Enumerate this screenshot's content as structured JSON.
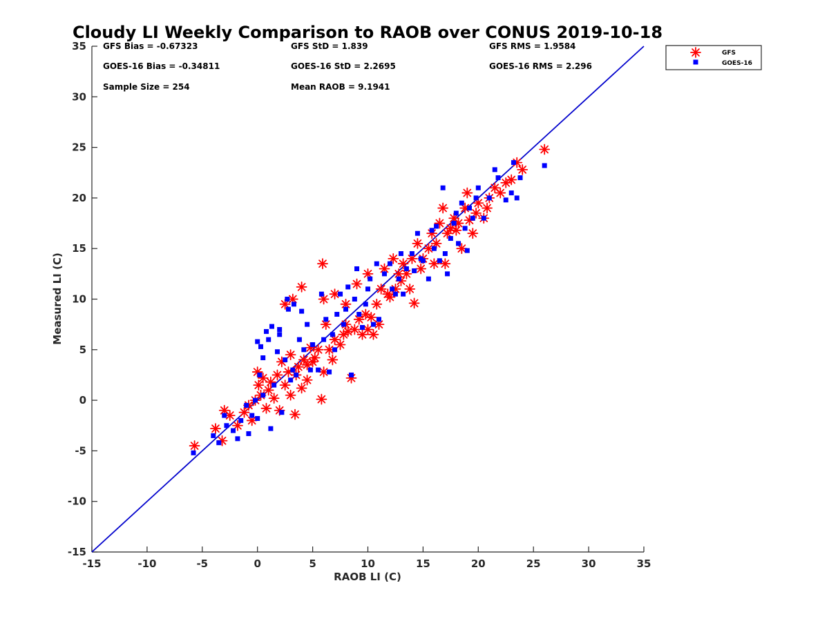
{
  "chart_data": {
    "type": "scatter",
    "title": "Cloudy LI Weekly Comparison to RAOB over CONUS 2019-10-18",
    "xlabel": "RAOB LI (C)",
    "ylabel": "Measured LI (C)",
    "xlim": [
      -15,
      35
    ],
    "ylim": [
      -15,
      35
    ],
    "xticks": [
      "-15",
      "-10",
      "-5",
      "0",
      "5",
      "10",
      "15",
      "20",
      "25",
      "30",
      "35"
    ],
    "yticks": [
      "-15",
      "-10",
      "-5",
      "0",
      "5",
      "10",
      "15",
      "20",
      "25",
      "30",
      "35"
    ],
    "grid": false,
    "legend_position": "outside-top-right",
    "reference_line": {
      "x": [
        -15,
        35
      ],
      "y": [
        -15,
        35
      ],
      "color": "#0000cc"
    },
    "stats": {
      "gfs_bias": "GFS Bias = -0.67323",
      "gfs_std": "GFS StD = 1.839",
      "gfs_rms": "GFS RMS = 1.9584",
      "goes_bias": "GOES-16 Bias = -0.34811",
      "goes_std": "GOES-16 StD = 2.2695",
      "goes_rms": "GOES-16 RMS = 2.296",
      "sample_size": "Sample Size = 254",
      "mean_raob": "Mean RAOB = 9.1941"
    },
    "series": [
      {
        "name": "GFS",
        "marker": "asterisk",
        "color": "#ff0000",
        "points": [
          [
            -5.7,
            -4.5
          ],
          [
            -3.8,
            -2.8
          ],
          [
            -3.2,
            -4.0
          ],
          [
            -3.0,
            -1.0
          ],
          [
            -2.5,
            -1.5
          ],
          [
            -1.8,
            -2.5
          ],
          [
            -1.2,
            -1.2
          ],
          [
            -0.8,
            -0.5
          ],
          [
            -0.5,
            -2.0
          ],
          [
            -0.2,
            0.0
          ],
          [
            0.0,
            2.8
          ],
          [
            0.1,
            1.5
          ],
          [
            0.3,
            0.5
          ],
          [
            0.5,
            2.2
          ],
          [
            0.8,
            -0.8
          ],
          [
            1.0,
            1.0
          ],
          [
            1.2,
            1.8
          ],
          [
            1.5,
            0.2
          ],
          [
            1.8,
            2.5
          ],
          [
            2.0,
            -1.0
          ],
          [
            2.2,
            3.8
          ],
          [
            2.5,
            1.5
          ],
          [
            2.5,
            9.5
          ],
          [
            2.8,
            2.8
          ],
          [
            3.0,
            0.5
          ],
          [
            3.0,
            4.5
          ],
          [
            3.2,
            10.0
          ],
          [
            3.4,
            -1.4
          ],
          [
            3.5,
            2.5
          ],
          [
            3.7,
            3.3
          ],
          [
            4.0,
            1.2
          ],
          [
            4.2,
            4.0
          ],
          [
            4.0,
            11.2
          ],
          [
            4.5,
            2.0
          ],
          [
            4.5,
            3.5
          ],
          [
            4.8,
            5.2
          ],
          [
            5.0,
            3.8
          ],
          [
            5.2,
            4.2
          ],
          [
            5.5,
            5.0
          ],
          [
            5.8,
            0.1
          ],
          [
            5.9,
            13.5
          ],
          [
            6.0,
            2.8
          ],
          [
            6.0,
            10.0
          ],
          [
            6.2,
            7.5
          ],
          [
            6.5,
            5.0
          ],
          [
            6.8,
            4.0
          ],
          [
            7.0,
            6.0
          ],
          [
            7.0,
            10.5
          ],
          [
            7.5,
            5.5
          ],
          [
            7.8,
            6.5
          ],
          [
            8.0,
            7.5
          ],
          [
            8.0,
            9.5
          ],
          [
            8.2,
            6.8
          ],
          [
            8.5,
            2.2
          ],
          [
            8.8,
            7.0
          ],
          [
            9.0,
            11.5
          ],
          [
            9.2,
            8.0
          ],
          [
            9.5,
            6.5
          ],
          [
            9.8,
            8.5
          ],
          [
            10.0,
            7.0
          ],
          [
            10.0,
            12.5
          ],
          [
            10.3,
            8.2
          ],
          [
            10.5,
            6.5
          ],
          [
            10.8,
            9.5
          ],
          [
            11.0,
            7.5
          ],
          [
            11.2,
            11.0
          ],
          [
            11.5,
            13.0
          ],
          [
            11.8,
            10.5
          ],
          [
            12.0,
            10.2
          ],
          [
            12.3,
            14.0
          ],
          [
            12.5,
            11.0
          ],
          [
            12.8,
            12.5
          ],
          [
            13.0,
            11.8
          ],
          [
            13.2,
            13.5
          ],
          [
            13.5,
            12.5
          ],
          [
            13.8,
            11.0
          ],
          [
            14.0,
            14.0
          ],
          [
            14.2,
            9.6
          ],
          [
            14.5,
            15.5
          ],
          [
            14.8,
            13.0
          ],
          [
            15.0,
            14.0
          ],
          [
            15.5,
            15.0
          ],
          [
            15.8,
            16.5
          ],
          [
            16.0,
            13.5
          ],
          [
            16.2,
            15.5
          ],
          [
            16.5,
            17.5
          ],
          [
            16.8,
            19.0
          ],
          [
            17.0,
            13.5
          ],
          [
            17.2,
            16.5
          ],
          [
            17.5,
            17.0
          ],
          [
            17.8,
            18.0
          ],
          [
            18.0,
            16.8
          ],
          [
            18.2,
            17.5
          ],
          [
            18.5,
            15.0
          ],
          [
            18.8,
            19.0
          ],
          [
            19.0,
            20.5
          ],
          [
            19.2,
            17.8
          ],
          [
            19.5,
            16.5
          ],
          [
            19.8,
            18.5
          ],
          [
            20.0,
            19.5
          ],
          [
            20.5,
            18.0
          ],
          [
            20.8,
            19.0
          ],
          [
            21.0,
            20.0
          ],
          [
            21.5,
            21.0
          ],
          [
            22.0,
            20.5
          ],
          [
            22.5,
            21.5
          ],
          [
            23.0,
            21.8
          ],
          [
            23.5,
            23.5
          ],
          [
            24.0,
            22.8
          ],
          [
            26.0,
            24.8
          ]
        ]
      },
      {
        "name": "GOES-16",
        "marker": "square",
        "color": "#0000ff",
        "points": [
          [
            -5.8,
            -5.2
          ],
          [
            -4.0,
            -3.5
          ],
          [
            -3.5,
            -4.2
          ],
          [
            -3.0,
            -1.5
          ],
          [
            -2.8,
            -2.5
          ],
          [
            -2.2,
            -3.0
          ],
          [
            -1.8,
            -3.8
          ],
          [
            -1.5,
            -2.0
          ],
          [
            -1.0,
            -0.5
          ],
          [
            -0.8,
            -3.3
          ],
          [
            -0.5,
            -1.5
          ],
          [
            -0.2,
            0.0
          ],
          [
            0.0,
            -1.8
          ],
          [
            0.0,
            5.8
          ],
          [
            0.2,
            2.5
          ],
          [
            0.3,
            5.3
          ],
          [
            0.5,
            4.2
          ],
          [
            0.5,
            0.5
          ],
          [
            0.8,
            6.8
          ],
          [
            1.0,
            6.0
          ],
          [
            1.2,
            -2.8
          ],
          [
            1.3,
            7.3
          ],
          [
            1.5,
            1.5
          ],
          [
            1.8,
            4.8
          ],
          [
            2.0,
            7.0
          ],
          [
            2.0,
            6.5
          ],
          [
            2.2,
            -1.2
          ],
          [
            2.5,
            4.0
          ],
          [
            2.7,
            10.0
          ],
          [
            2.8,
            9.0
          ],
          [
            3.0,
            2.0
          ],
          [
            3.2,
            3.0
          ],
          [
            3.3,
            9.5
          ],
          [
            3.5,
            2.5
          ],
          [
            3.8,
            6.0
          ],
          [
            4.0,
            8.8
          ],
          [
            4.2,
            5.0
          ],
          [
            4.5,
            7.5
          ],
          [
            4.8,
            3.0
          ],
          [
            5.0,
            5.5
          ],
          [
            5.5,
            3.0
          ],
          [
            5.8,
            10.5
          ],
          [
            6.0,
            6.0
          ],
          [
            6.2,
            8.0
          ],
          [
            6.5,
            2.8
          ],
          [
            6.8,
            6.5
          ],
          [
            7.0,
            5.0
          ],
          [
            7.2,
            8.5
          ],
          [
            7.5,
            10.5
          ],
          [
            7.8,
            7.5
          ],
          [
            8.0,
            9.0
          ],
          [
            8.2,
            11.2
          ],
          [
            8.5,
            2.5
          ],
          [
            8.8,
            10.0
          ],
          [
            9.0,
            13.0
          ],
          [
            9.2,
            8.5
          ],
          [
            9.5,
            7.2
          ],
          [
            9.8,
            9.5
          ],
          [
            10.0,
            11.0
          ],
          [
            10.2,
            12.0
          ],
          [
            10.5,
            7.5
          ],
          [
            10.8,
            13.5
          ],
          [
            11.0,
            8.0
          ],
          [
            11.5,
            12.5
          ],
          [
            12.0,
            13.5
          ],
          [
            12.2,
            11.0
          ],
          [
            12.5,
            10.5
          ],
          [
            12.8,
            12.0
          ],
          [
            13.0,
            14.5
          ],
          [
            13.2,
            10.5
          ],
          [
            13.5,
            13.0
          ],
          [
            14.0,
            14.5
          ],
          [
            14.2,
            12.8
          ],
          [
            14.5,
            16.5
          ],
          [
            14.8,
            14.0
          ],
          [
            15.0,
            13.8
          ],
          [
            15.5,
            12.0
          ],
          [
            15.8,
            16.8
          ],
          [
            16.0,
            15.0
          ],
          [
            16.2,
            17.2
          ],
          [
            16.5,
            13.8
          ],
          [
            16.8,
            21.0
          ],
          [
            17.0,
            14.5
          ],
          [
            17.2,
            12.5
          ],
          [
            17.5,
            16.0
          ],
          [
            17.8,
            17.5
          ],
          [
            18.0,
            18.5
          ],
          [
            18.2,
            15.5
          ],
          [
            18.5,
            19.5
          ],
          [
            18.8,
            17.0
          ],
          [
            19.0,
            14.8
          ],
          [
            19.2,
            19.0
          ],
          [
            19.5,
            18.0
          ],
          [
            19.8,
            20.0
          ],
          [
            20.0,
            21.0
          ],
          [
            20.5,
            18.0
          ],
          [
            21.0,
            20.0
          ],
          [
            21.5,
            22.8
          ],
          [
            21.8,
            22.0
          ],
          [
            22.5,
            19.8
          ],
          [
            23.0,
            20.5
          ],
          [
            23.2,
            23.5
          ],
          [
            23.5,
            20.0
          ],
          [
            23.8,
            22.0
          ],
          [
            26.0,
            23.2
          ]
        ]
      }
    ]
  }
}
